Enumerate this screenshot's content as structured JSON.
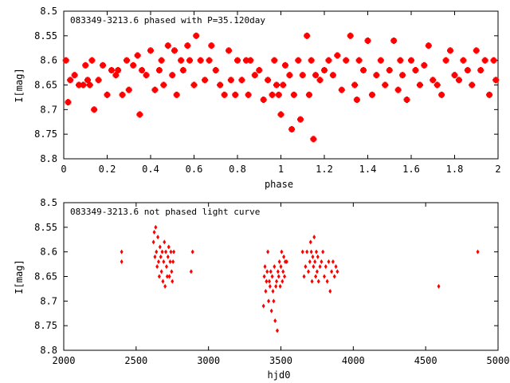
{
  "chart_data": [
    {
      "type": "scatter",
      "title": "083349-3213.6 phased with P=35.120day",
      "xlabel": "phase",
      "ylabel": "I[mag]",
      "xlim": [
        0,
        2
      ],
      "ylim": [
        8.8,
        8.5
      ],
      "y_inverted": true,
      "x_ticks": [
        "0",
        "0.2",
        "0.4",
        "0.6",
        "0.8",
        "1",
        "1.2",
        "1.4",
        "1.6",
        "1.8",
        "2"
      ],
      "y_ticks": [
        "8.5",
        "8.55",
        "8.6",
        "8.65",
        "8.7",
        "8.75",
        "8.8"
      ],
      "marker": "plus-bold",
      "color": "#ff0000",
      "series": [
        {
          "name": "phased",
          "x": [
            0.01,
            0.02,
            0.03,
            0.05,
            0.07,
            0.09,
            0.1,
            0.11,
            0.12,
            0.13,
            0.14,
            0.16,
            0.18,
            0.2,
            0.22,
            0.24,
            0.25,
            0.27,
            0.29,
            0.3,
            0.32,
            0.34,
            0.35,
            0.36,
            0.38,
            0.4,
            0.42,
            0.44,
            0.45,
            0.46,
            0.48,
            0.5,
            0.51,
            0.52,
            0.54,
            0.55,
            0.57,
            0.58,
            0.6,
            0.61,
            0.63,
            0.65,
            0.67,
            0.68,
            0.7,
            0.72,
            0.74,
            0.76,
            0.77,
            0.79,
            0.8,
            0.82,
            0.84,
            0.85,
            0.86,
            0.88,
            0.9,
            0.92,
            0.94,
            0.96,
            0.97,
            0.98,
            0.99,
            1.0,
            1.01,
            1.02,
            1.04,
            1.05,
            1.06,
            1.08,
            1.09,
            1.1,
            1.12,
            1.13,
            1.14,
            1.15,
            1.16,
            1.18,
            1.2,
            1.22,
            1.24,
            1.26,
            1.28,
            1.3,
            1.32,
            1.34,
            1.35,
            1.36,
            1.38,
            1.4,
            1.42,
            1.44,
            1.46,
            1.48,
            1.5,
            1.52,
            1.54,
            1.55,
            1.56,
            1.58,
            1.6,
            1.62,
            1.64,
            1.66,
            1.68,
            1.7,
            1.72,
            1.74,
            1.76,
            1.78,
            1.8,
            1.82,
            1.84,
            1.86,
            1.88,
            1.9,
            1.92,
            1.94,
            1.96,
            1.98,
            1.99
          ],
          "y": [
            8.6,
            8.685,
            8.64,
            8.63,
            8.65,
            8.65,
            8.61,
            8.64,
            8.65,
            8.6,
            8.7,
            8.64,
            8.61,
            8.67,
            8.62,
            8.63,
            8.62,
            8.67,
            8.6,
            8.66,
            8.61,
            8.59,
            8.71,
            8.62,
            8.63,
            8.58,
            8.66,
            8.62,
            8.6,
            8.65,
            8.57,
            8.63,
            8.58,
            8.67,
            8.6,
            8.62,
            8.57,
            8.6,
            8.65,
            8.55,
            8.6,
            8.64,
            8.6,
            8.57,
            8.62,
            8.65,
            8.67,
            8.58,
            8.64,
            8.67,
            8.6,
            8.64,
            8.6,
            8.67,
            8.6,
            8.63,
            8.62,
            8.68,
            8.64,
            8.67,
            8.6,
            8.65,
            8.67,
            8.71,
            8.65,
            8.61,
            8.63,
            8.74,
            8.67,
            8.6,
            8.72,
            8.63,
            8.55,
            8.67,
            8.6,
            8.76,
            8.63,
            8.64,
            8.62,
            8.6,
            8.63,
            8.59,
            8.66,
            8.6,
            8.55,
            8.65,
            8.68,
            8.6,
            8.62,
            8.56,
            8.67,
            8.63,
            8.6,
            8.65,
            8.62,
            8.56,
            8.66,
            8.6,
            8.63,
            8.68,
            8.6,
            8.62,
            8.65,
            8.61,
            8.57,
            8.64,
            8.65,
            8.67,
            8.6,
            8.58,
            8.63,
            8.64,
            8.6,
            8.62,
            8.65,
            8.58,
            8.62,
            8.6,
            8.67,
            8.6,
            8.64
          ]
        }
      ]
    },
    {
      "type": "scatter",
      "title": "083349-3213.6 not phased light curve",
      "xlabel": "hjd0",
      "ylabel": "I[mag]",
      "xlim": [
        2000,
        5000
      ],
      "ylim": [
        8.8,
        8.5
      ],
      "y_inverted": true,
      "x_ticks": [
        "2000",
        "2500",
        "3000",
        "3500",
        "4000",
        "4500",
        "5000"
      ],
      "y_ticks": [
        "8.5",
        "8.55",
        "8.6",
        "8.65",
        "8.7",
        "8.75",
        "8.8"
      ],
      "marker": "diamond",
      "color": "#ff0000",
      "series": [
        {
          "name": "observations",
          "x": [
            2400,
            2400,
            2620,
            2625,
            2630,
            2635,
            2640,
            2645,
            2650,
            2655,
            2660,
            2665,
            2670,
            2675,
            2680,
            2685,
            2690,
            2695,
            2700,
            2705,
            2710,
            2715,
            2720,
            2725,
            2730,
            2735,
            2740,
            2745,
            2750,
            2755,
            2760,
            2880,
            2890,
            3380,
            3385,
            3390,
            3395,
            3400,
            3405,
            3410,
            3415,
            3420,
            3425,
            3430,
            3435,
            3440,
            3445,
            3450,
            3455,
            3460,
            3465,
            3470,
            3475,
            3480,
            3485,
            3490,
            3495,
            3500,
            3505,
            3510,
            3515,
            3520,
            3525,
            3530,
            3540,
            3650,
            3660,
            3670,
            3680,
            3690,
            3700,
            3705,
            3710,
            3715,
            3720,
            3725,
            3730,
            3735,
            3740,
            3745,
            3750,
            3755,
            3760,
            3770,
            3780,
            3790,
            3800,
            3810,
            3820,
            3830,
            3840,
            3850,
            3860,
            3870,
            3880,
            3890,
            4590,
            4860
          ],
          "y": [
            8.6,
            8.62,
            8.58,
            8.56,
            8.61,
            8.55,
            8.6,
            8.63,
            8.57,
            8.62,
            8.65,
            8.59,
            8.61,
            8.64,
            8.6,
            8.66,
            8.62,
            8.58,
            8.67,
            8.6,
            8.63,
            8.65,
            8.61,
            8.59,
            8.65,
            8.62,
            8.6,
            8.64,
            8.66,
            8.62,
            8.6,
            8.64,
            8.6,
            8.71,
            8.65,
            8.63,
            8.68,
            8.66,
            8.64,
            8.6,
            8.7,
            8.66,
            8.67,
            8.64,
            8.72,
            8.65,
            8.68,
            8.7,
            8.63,
            8.74,
            8.67,
            8.66,
            8.76,
            8.64,
            8.65,
            8.62,
            8.67,
            8.63,
            8.6,
            8.66,
            8.64,
            8.61,
            8.65,
            8.62,
            8.62,
            8.6,
            8.65,
            8.63,
            8.6,
            8.64,
            8.62,
            8.58,
            8.6,
            8.66,
            8.61,
            8.63,
            8.57,
            8.62,
            8.65,
            8.6,
            8.64,
            8.61,
            8.66,
            8.63,
            8.62,
            8.6,
            8.65,
            8.63,
            8.66,
            8.62,
            8.68,
            8.64,
            8.62,
            8.65,
            8.63,
            8.64,
            8.67,
            8.6
          ]
        }
      ]
    }
  ]
}
